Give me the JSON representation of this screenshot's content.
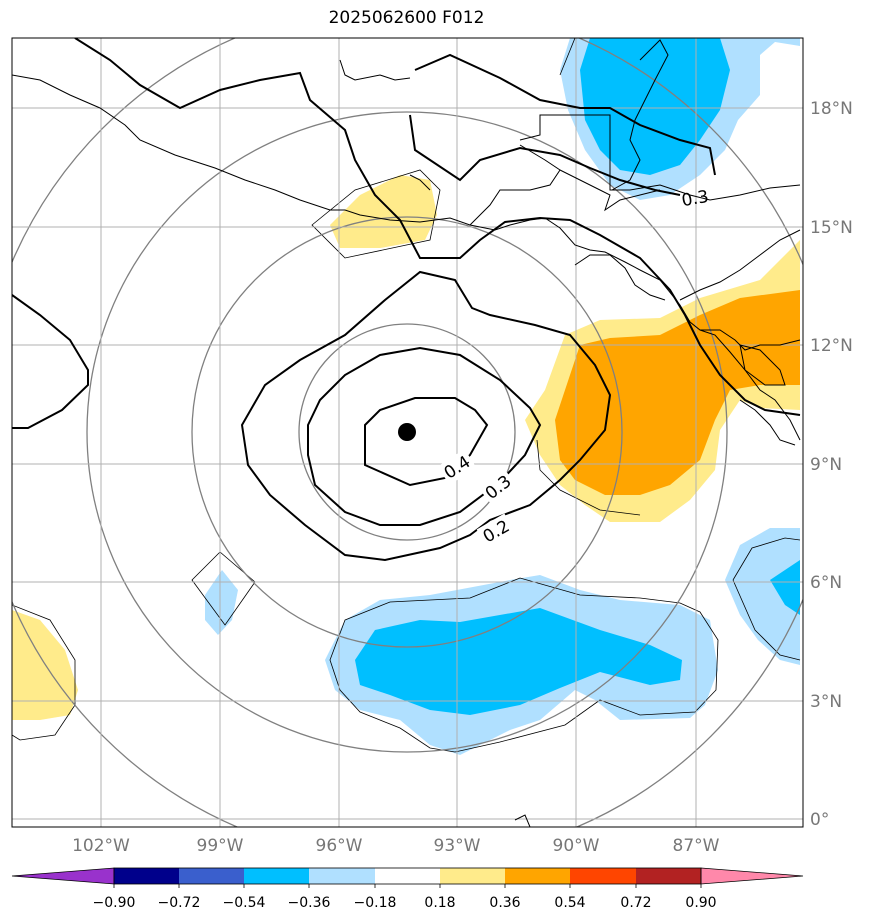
{
  "title": "2025062600 F012",
  "map": {
    "lon_labels": [
      "102°W",
      "99°W",
      "96°W",
      "93°W",
      "90°W",
      "87°W"
    ],
    "lat_labels": [
      "18°N",
      "15°N",
      "12°N",
      "9°N",
      "6°N",
      "3°N",
      "0°"
    ],
    "contour_labels": [
      "0.4",
      "0.3",
      "0.2",
      "0.3"
    ],
    "center_marker": "storm-center"
  },
  "colorbar": {
    "ticks": [
      "−0.90",
      "−0.72",
      "−0.54",
      "−0.36",
      "−0.18",
      "0.18",
      "0.36",
      "0.54",
      "0.72",
      "0.90"
    ],
    "colors": [
      "#9932cc",
      "#00008b",
      "#3a5fcd",
      "#00bfff",
      "#b0e0ff",
      "#ffffff",
      "#ffeb8b",
      "#ffa500",
      "#ff4500",
      "#b22222",
      "#ff88aa"
    ]
  }
}
